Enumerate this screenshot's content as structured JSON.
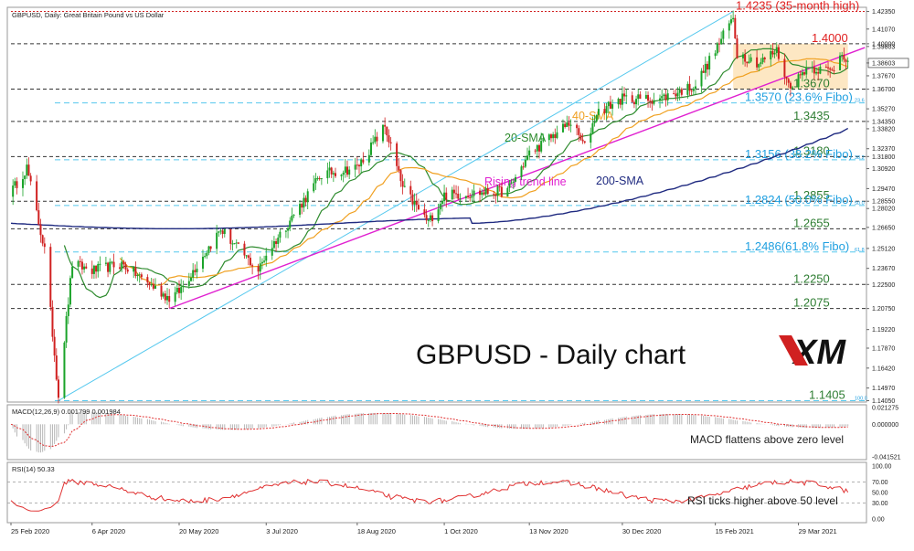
{
  "header": {
    "symbol_title": "GBPUSD, Daily:  Great Britain Pound vs US Dollar"
  },
  "watermark": {
    "title": "GBPUSD - Daily chart",
    "logo_text": "XM"
  },
  "colors": {
    "candle_up": "#1aa329",
    "candle_down": "#d02020",
    "sma20": "#2e8b2e",
    "sma40": "#f0a020",
    "sma200": "#1f2a80",
    "trend_line": "#e020d0",
    "channel_line": "#55c8ee",
    "fibo_text": "#1e9fe0",
    "level_text_green": "#2e7d32",
    "level_text_red": "#e02020",
    "consolidation_box": "#fde3b8",
    "macd_hist": "#b8b8b8",
    "macd_signal": "#e03030",
    "rsi_line": "#e03030"
  },
  "chart_data": [
    {
      "type": "candlestick",
      "title": "GBPUSD, Daily:  Great Britain Pound vs US Dollar",
      "x_tick_labels": [
        "25 Feb 2020",
        "6 Apr 2020",
        "20 May 2020",
        "3 Jul 2020",
        "18 Aug 2020",
        "1 Oct 2020",
        "13 Nov 2020",
        "30 Dec 2020",
        "15 Feb 2021",
        "29 Mar 2021"
      ],
      "y_tick_labels": [
        "1.42350",
        "1.41070",
        "1.40000",
        "1.39803",
        "1.38603",
        "1.37670",
        "1.36700",
        "1.35270",
        "1.34350",
        "1.33820",
        "1.32370",
        "1.31800",
        "1.30920",
        "1.29470",
        "1.28550",
        "1.28020",
        "1.26650",
        "1.25120",
        "1.23670",
        "1.22500",
        "1.20750",
        "1.19220",
        "1.17870",
        "1.16420",
        "1.14970",
        "1.14050"
      ],
      "current_price": "1.38603",
      "ylim": [
        1.1395,
        1.4265
      ],
      "series": [
        {
          "name": "GBPUSD",
          "type": "candles"
        },
        {
          "name": "20-SMA",
          "type": "line"
        },
        {
          "name": "40-SMA",
          "type": "line"
        },
        {
          "name": "200-SMA",
          "type": "line"
        }
      ],
      "price_anchors": [
        {
          "x": "25 Feb 2020",
          "y": 1.292
        },
        {
          "x": "4 Mar 2020",
          "y": 1.31
        },
        {
          "x": "13 Mar 2020",
          "y": 1.25
        },
        {
          "x": "20 Mar 2020",
          "y": 1.1445
        },
        {
          "x": "27 Mar 2020",
          "y": 1.24
        },
        {
          "x": "6 Apr 2020",
          "y": 1.235
        },
        {
          "x": "21 Apr 2020",
          "y": 1.24
        },
        {
          "x": "15 May 2020",
          "y": 1.215
        },
        {
          "x": "20 May 2020",
          "y": 1.22
        },
        {
          "x": "10 Jun 2020",
          "y": 1.265
        },
        {
          "x": "29 Jun 2020",
          "y": 1.235
        },
        {
          "x": "3 Jul 2020",
          "y": 1.247
        },
        {
          "x": "31 Jul 2020",
          "y": 1.305
        },
        {
          "x": "18 Aug 2020",
          "y": 1.31
        },
        {
          "x": "1 Sep 2020",
          "y": 1.34
        },
        {
          "x": "10 Sep 2020",
          "y": 1.295
        },
        {
          "x": "23 Sep 2020",
          "y": 1.27
        },
        {
          "x": "1 Oct 2020",
          "y": 1.29
        },
        {
          "x": "2 Nov 2020",
          "y": 1.293
        },
        {
          "x": "13 Nov 2020",
          "y": 1.32
        },
        {
          "x": "4 Dec 2020",
          "y": 1.343
        },
        {
          "x": "11 Dec 2020",
          "y": 1.325
        },
        {
          "x": "17 Dec 2020",
          "y": 1.35
        },
        {
          "x": "30 Dec 2020",
          "y": 1.36
        },
        {
          "x": "18 Jan 2021",
          "y": 1.36
        },
        {
          "x": "5 Feb 2021",
          "y": 1.37
        },
        {
          "x": "15 Feb 2021",
          "y": 1.3951
        },
        {
          "x": "24 Feb 2021",
          "y": 1.4195
        },
        {
          "x": "26 Feb 2021",
          "y": 1.393
        },
        {
          "x": "9 Mar 2021",
          "y": 1.386
        },
        {
          "x": "18 Mar 2021",
          "y": 1.395
        },
        {
          "x": "24 Mar 2021",
          "y": 1.37
        },
        {
          "x": "29 Mar 2021",
          "y": 1.375
        },
        {
          "x": "2 Apr 2021",
          "y": 1.383
        },
        {
          "x": "15 Apr 2021",
          "y": 1.38
        },
        {
          "x": "20 Apr 2021",
          "y": 1.395
        },
        {
          "x": "23 Apr 2021",
          "y": 1.386
        }
      ],
      "levels": [
        {
          "label": "1.4235 (35-month high)",
          "value": 1.4235,
          "style": "red-dotted"
        },
        {
          "label": "1.4000",
          "value": 1.4,
          "style": "red-dashed"
        },
        {
          "label": "1.3670",
          "value": 1.367,
          "style": "black-dashed"
        },
        {
          "label": "1.3570 (23.6% Fibo)",
          "value": 1.357,
          "style": "fibo"
        },
        {
          "label": "1.3435",
          "value": 1.3435,
          "style": "black-dashed"
        },
        {
          "label": "1.3180",
          "value": 1.318,
          "style": "black-dashed"
        },
        {
          "label": "1.3156 (38.2% Fibo)",
          "value": 1.3156,
          "style": "fibo"
        },
        {
          "label": "1.2855",
          "value": 1.2855,
          "style": "black-dashed"
        },
        {
          "label": "1.2824 (50.0% Fibo)",
          "value": 1.2824,
          "style": "fibo"
        },
        {
          "label": "1.2655",
          "value": 1.2655,
          "style": "black-dashed"
        },
        {
          "label": "1.2486(61.8% Fibo)",
          "value": 1.2486,
          "style": "fibo"
        },
        {
          "label": "1.2250",
          "value": 1.225,
          "style": "black-dashed"
        },
        {
          "label": "1.2075",
          "value": 1.2075,
          "style": "black-dashed"
        },
        {
          "label": "1.1405",
          "value": 1.1405,
          "style": "fibo"
        }
      ],
      "fibo_small_labels": [
        "23.6",
        "38.2",
        "50.0",
        "61.8",
        "100.0"
      ],
      "annotations": [
        "20-SMA",
        "40-SMA",
        "200-SMA",
        "Rising trend line"
      ],
      "trend_line": {
        "from": {
          "x": "15 May 2020",
          "y": 1.2075
        },
        "to": {
          "x": "20 Apr 2021",
          "y": 1.391
        }
      },
      "channel_line": {
        "from": {
          "x": "20 Mar 2020",
          "y": 1.1405
        },
        "to": {
          "x": "24 Feb 2021",
          "y": 1.4235
        }
      },
      "consolidation_box": {
        "x_start": "24 Feb 2021",
        "x_end": "23 Apr 2021",
        "y_low": 1.367,
        "y_high": 1.4
      }
    },
    {
      "type": "bar",
      "title": "MACD(12,26,9) 0.001799 0.001984",
      "y_tick_labels": [
        "0.021275",
        "0.000000",
        "-0.041521"
      ],
      "ylim": [
        -0.0415,
        0.0213
      ],
      "series": [
        {
          "name": "MACD",
          "type": "histogram"
        },
        {
          "name": "Signal",
          "type": "dotted-line"
        }
      ],
      "annotation": "MACD flattens above zero level"
    },
    {
      "type": "line",
      "title": "RSI(14) 50.33",
      "y_tick_labels": [
        "100.00",
        "70.00",
        "50.00",
        "30.00",
        "0.00"
      ],
      "ylim": [
        0,
        100
      ],
      "last_value": 50.33,
      "annotation": "RSI ticks higher above 50 level"
    }
  ]
}
